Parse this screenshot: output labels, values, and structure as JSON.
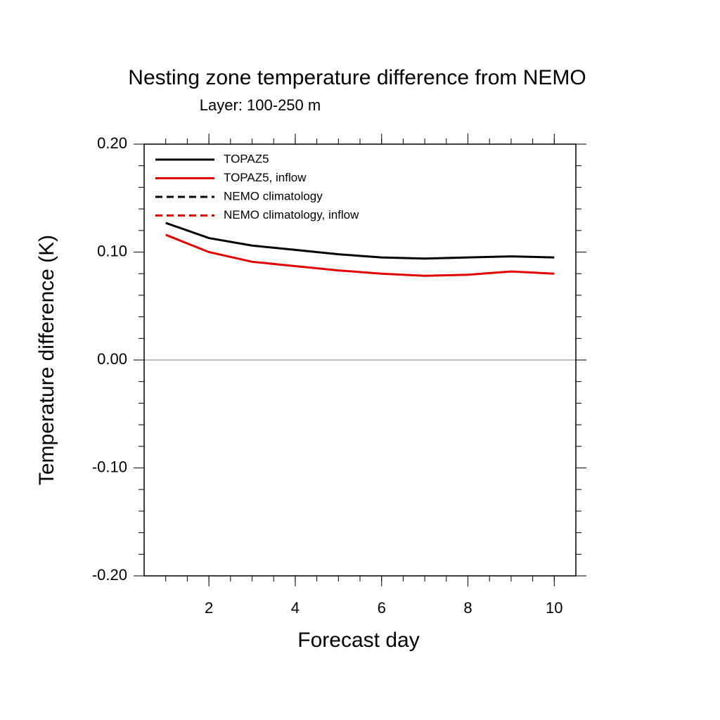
{
  "chart_data": {
    "type": "line",
    "title": "Nesting zone temperature difference from NEMO",
    "subtitle": "Layer: 100-250 m",
    "x_label": "Forecast day",
    "y_label": "Temperature difference (K)",
    "x": [
      1,
      2,
      3,
      4,
      5,
      6,
      7,
      8,
      9,
      10
    ],
    "series": [
      {
        "name": "TOPAZ5",
        "color": "#000000",
        "dashed": false,
        "values": [
          0.127,
          0.113,
          0.106,
          0.102,
          0.098,
          0.095,
          0.094,
          0.095,
          0.096,
          0.095
        ]
      },
      {
        "name": "TOPAZ5, inflow",
        "color": "#e00000",
        "dashed": false,
        "values": [
          0.116,
          0.1,
          0.091,
          0.087,
          0.083,
          0.08,
          0.078,
          0.079,
          0.082,
          0.08
        ]
      },
      {
        "name": "NEMO climatology",
        "color": "#000000",
        "dashed": true,
        "values": [
          null,
          null,
          null,
          null,
          null,
          null,
          null,
          null,
          null,
          null
        ]
      },
      {
        "name": "NEMO climatology, inflow",
        "color": "#e00000",
        "dashed": true,
        "values": [
          null,
          null,
          null,
          null,
          null,
          null,
          null,
          null,
          null,
          null
        ]
      }
    ],
    "xlim": [
      0.5,
      10.5
    ],
    "xticks": [
      2,
      4,
      6,
      8,
      10
    ],
    "ylim": [
      -0.2,
      0.2
    ],
    "yticks": [
      {
        "value": -0.2,
        "label": "-0.20"
      },
      {
        "value": -0.1,
        "label": "-0.10"
      },
      {
        "value": 0,
        "label": "0.00"
      },
      {
        "value": 0.1,
        "label": "0.10"
      },
      {
        "value": 0.2,
        "label": "0.20"
      }
    ],
    "legend": "top-left"
  }
}
